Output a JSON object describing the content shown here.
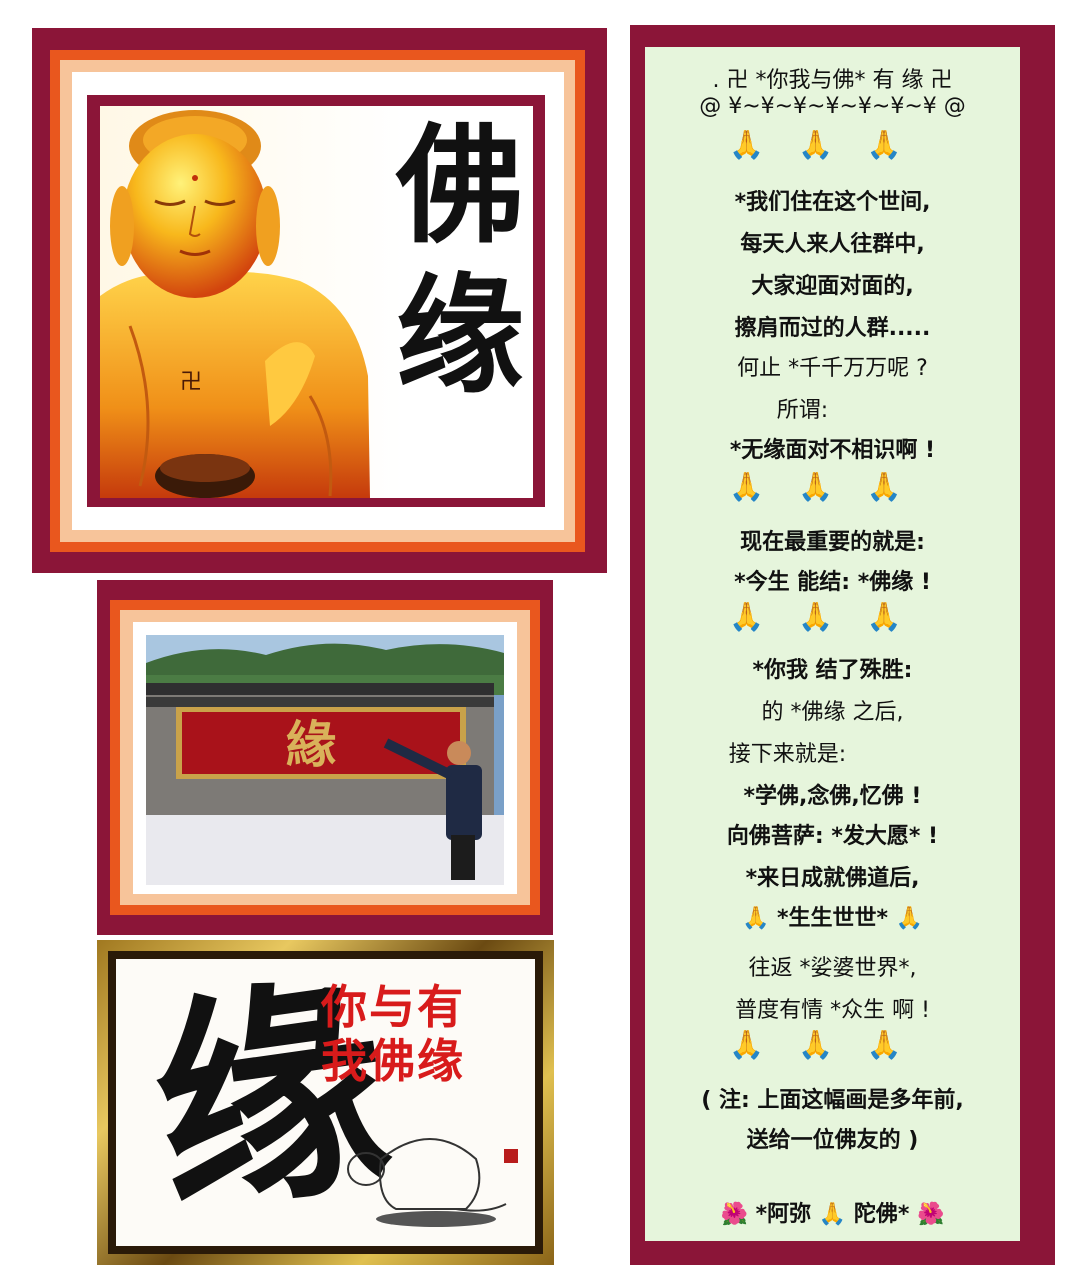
{
  "panel1": {
    "title_top": "佛",
    "title_bottom": "缘",
    "chest_symbol": "卍"
  },
  "panel2": {
    "plaque_char": "緣"
  },
  "panel3": {
    "big_char": "缘",
    "red_row1": "你与有",
    "red_row2": "我佛缘"
  },
  "text_panel": {
    "header": ". 卍 *你我与佛* 有 缘 卍",
    "decor": "@ ¥~¥~¥~¥~¥~¥~¥ @",
    "pray": "🙏🙏🙏",
    "l1": "*我们住在这个世间,",
    "l2": "每天人来人往群中,",
    "l3": "大家迎面对面的,",
    "l4": "擦肩而过的人群.....",
    "l5": "何止 *千千万万呢 ?",
    "l6": "所谓:",
    "l7": "*无缘面对不相识啊 !",
    "l8": "现在最重要的就是:",
    "l9": "*今生 能结: *佛缘 !",
    "l10": "*你我 结了殊胜:",
    "l11": "的 *佛缘 之后,",
    "l12": "接下来就是:",
    "l13": "*学佛,念佛,忆佛 !",
    "l14": "向佛菩萨: *发大愿* !",
    "l15": "*来日成就佛道后,",
    "l16": "🙏 *生生世世* 🙏",
    "l17": "往返 *娑婆世界*,",
    "l18": "普度有情 *众生 啊 !",
    "l19": "( 注: 上面这幅画是多年前,",
    "l20": "送给一位佛友的 )",
    "l21": "🌺 *阿弥 🙏 陀佛* 🌺"
  },
  "colors": {
    "frame": "#8b1538",
    "orange": "#e9571e",
    "panel_bg": "#e6f5dc"
  }
}
